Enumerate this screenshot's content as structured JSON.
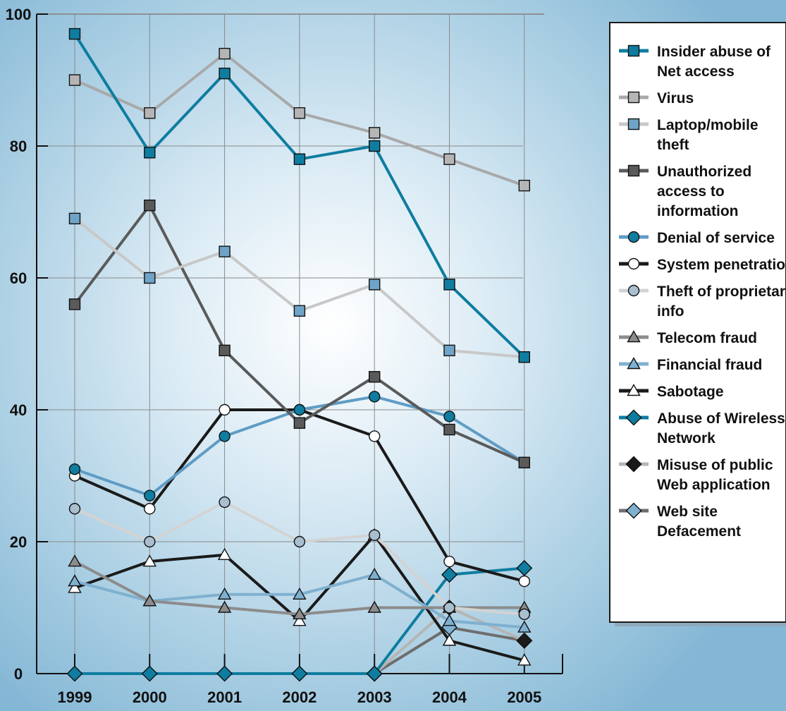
{
  "chart_data": {
    "type": "line",
    "title": "",
    "xlabel": "",
    "ylabel": "",
    "x": [
      "1999",
      "2000",
      "2001",
      "2002",
      "2003",
      "2004",
      "2005"
    ],
    "yticks": [
      "0",
      "20",
      "40",
      "60",
      "80",
      "100"
    ],
    "ylim": [
      0,
      100
    ],
    "grid": true,
    "legend_position": "right",
    "series": [
      {
        "name": "Insider abuse of Net access",
        "legend_lines": [
          "Insider abuse of",
          "Net access"
        ],
        "color": "#0E7DA0",
        "marker": "square",
        "marker_fill": "#0E7DA0",
        "values": [
          97,
          79,
          91,
          78,
          80,
          59,
          48
        ]
      },
      {
        "name": "Virus",
        "legend_lines": [
          "Virus"
        ],
        "color": "#A9A9A9",
        "marker": "square",
        "marker_fill": "#B5B5B5",
        "values": [
          90,
          85,
          94,
          85,
          82,
          78,
          74
        ]
      },
      {
        "name": "Laptop/mobile theft",
        "legend_lines": [
          "Laptop/mobile",
          "theft"
        ],
        "color": "#C8C8C8",
        "marker": "square",
        "marker_fill": "#6FA3C7",
        "values": [
          69,
          60,
          64,
          55,
          59,
          49,
          48
        ]
      },
      {
        "name": "Unauthorized access to information",
        "legend_lines": [
          "Unauthorized",
          "access to",
          "information"
        ],
        "color": "#5A5A5A",
        "marker": "square",
        "marker_fill": "#5A5A5A",
        "values": [
          56,
          71,
          49,
          38,
          45,
          37,
          32
        ]
      },
      {
        "name": "Denial of service",
        "legend_lines": [
          "Denial of service"
        ],
        "color": "#5F9CC4",
        "marker": "circle",
        "marker_fill": "#0E7DA0",
        "values": [
          31,
          27,
          36,
          40,
          42,
          39,
          32
        ]
      },
      {
        "name": "System penetration",
        "legend_lines": [
          "System penetration"
        ],
        "color": "#1A1A1A",
        "marker": "circle",
        "marker_fill": "#FFFFFF",
        "values": [
          30,
          25,
          40,
          40,
          36,
          17,
          14
        ]
      },
      {
        "name": "Theft of proprietary info",
        "legend_lines": [
          "Theft of proprietary",
          "info"
        ],
        "color": "#D3D3D3",
        "marker": "circle",
        "marker_fill": "#A9BFD0",
        "values": [
          25,
          20,
          26,
          20,
          21,
          10,
          9
        ]
      },
      {
        "name": "Telecom fraud",
        "legend_lines": [
          "Telecom fraud"
        ],
        "color": "#8C8C8C",
        "marker": "triangle",
        "marker_fill": "#8C8C8C",
        "values": [
          17,
          11,
          10,
          9,
          10,
          10,
          10
        ]
      },
      {
        "name": "Financial fraud",
        "legend_lines": [
          "Financial fraud"
        ],
        "color": "#7FB0D0",
        "marker": "triangle",
        "marker_fill": "#7FB0D0",
        "values": [
          14,
          11,
          12,
          12,
          15,
          8,
          7
        ]
      },
      {
        "name": "Sabotage",
        "legend_lines": [
          "Sabotage"
        ],
        "color": "#1A1A1A",
        "marker": "triangle",
        "marker_fill": "#FFFFFF",
        "values": [
          13,
          17,
          18,
          8,
          21,
          5,
          2
        ]
      },
      {
        "name": "Abuse of Wireless Network",
        "legend_lines": [
          "Abuse of Wireless",
          "Network"
        ],
        "color": "#0E7DA0",
        "marker": "diamond",
        "marker_fill": "#0E7DA0",
        "values": [
          0,
          0,
          0,
          0,
          0,
          15,
          16
        ]
      },
      {
        "name": "Misuse of public Web application",
        "legend_lines": [
          "Misuse of public",
          "Web application"
        ],
        "color": "#B5B5B5",
        "marker": "diamond",
        "marker_fill": "#1A1A1A",
        "values": [
          null,
          null,
          null,
          null,
          0,
          10,
          5
        ]
      },
      {
        "name": "Web site Defacement",
        "legend_lines": [
          "Web site",
          "Defacement"
        ],
        "color": "#6E6E6E",
        "marker": "diamond",
        "marker_fill": "#7FB0D0",
        "values": [
          null,
          null,
          null,
          null,
          0,
          7,
          5
        ]
      }
    ]
  }
}
